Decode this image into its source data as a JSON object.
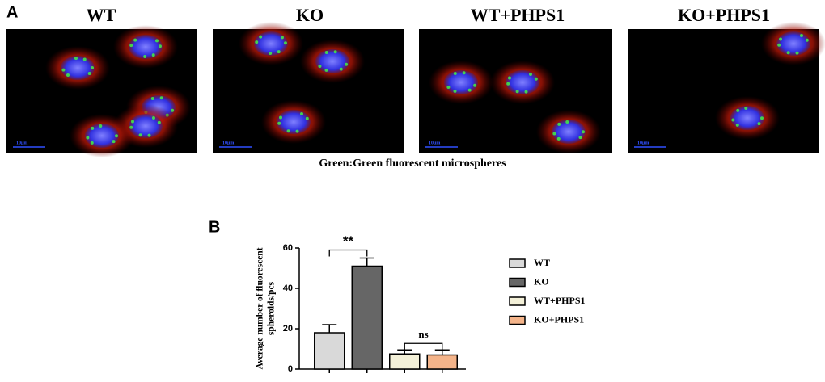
{
  "figure": {
    "panel_a_label": "A",
    "panel_b_label": "B",
    "images": [
      {
        "title": "WT",
        "scale_label": "10μm"
      },
      {
        "title": "KO",
        "scale_label": "10μm"
      },
      {
        "title": "WT+PHPS1",
        "scale_label": "10μm"
      },
      {
        "title": "KO+PHPS1",
        "scale_label": "10μm"
      }
    ],
    "caption": "Green:Green fluorescent microspheres"
  },
  "chart_data": {
    "type": "bar",
    "y_label": [
      "Average number of fluorescent",
      "spheroids/pcs"
    ],
    "categories": [
      "WT",
      "KO",
      "WT+PHPS1",
      "KO+PHPS1"
    ],
    "values": [
      18,
      51,
      7.5,
      7
    ],
    "errors": [
      4,
      4,
      2,
      2.5
    ],
    "colors": [
      "#d9d9d9",
      "#666666",
      "#f3f0d8",
      "#f4b48a"
    ],
    "ylim": [
      0,
      60
    ],
    "yticks": [
      0,
      20,
      40,
      60
    ],
    "annotations": [
      {
        "text": "**",
        "between": [
          "WT",
          "KO"
        ]
      },
      {
        "text": "ns",
        "between": [
          "WT+PHPS1",
          "KO+PHPS1"
        ]
      }
    ],
    "legend": "right"
  }
}
